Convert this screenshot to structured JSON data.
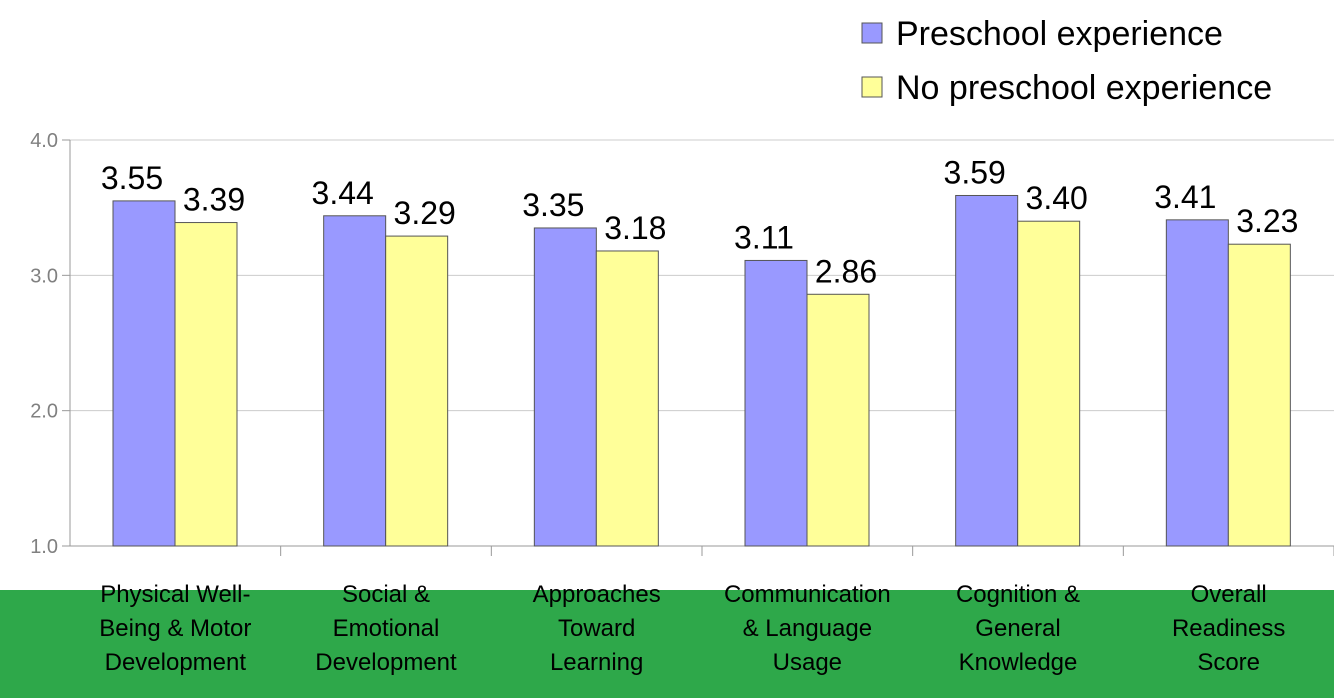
{
  "chart_data": {
    "type": "bar",
    "categories": [
      "Physical Well-Being & Motor Development",
      "Social & Emotional Development",
      "Approaches Toward Learning",
      "Communication & Language Usage",
      "Cognition & General Knowledge",
      "Overall Readiness Score"
    ],
    "series": [
      {
        "name": "Preschool experience",
        "color": "#9999ff",
        "values": [
          3.55,
          3.44,
          3.35,
          3.11,
          3.59,
          3.41
        ],
        "value_labels": [
          "3.55",
          "3.44",
          "3.35",
          "3.11",
          "3.59",
          "3.41"
        ]
      },
      {
        "name": "No preschool experience",
        "color": "#ffff99",
        "values": [
          3.39,
          3.29,
          3.18,
          2.86,
          3.4,
          3.23
        ],
        "value_labels": [
          "3.39",
          "3.29",
          "3.18",
          "2.86",
          "3.40",
          "3.23"
        ]
      }
    ],
    "ylim": [
      1,
      4
    ],
    "yticks": [
      {
        "value": 1,
        "label": "1.0"
      },
      {
        "value": 2,
        "label": "2.0"
      },
      {
        "value": 3,
        "label": "3.0"
      },
      {
        "value": 4,
        "label": "4.0"
      }
    ],
    "grid": true,
    "legend": "top-right"
  }
}
